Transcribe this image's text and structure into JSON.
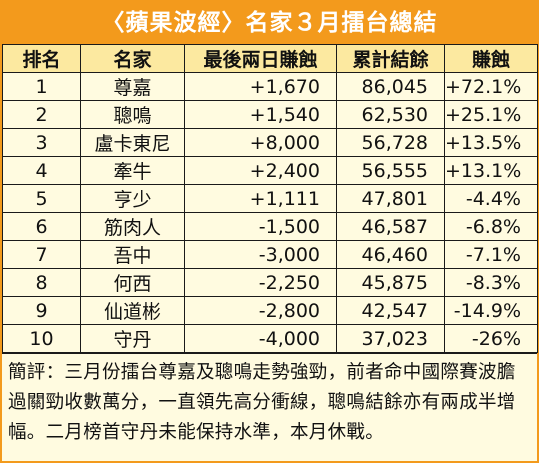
{
  "title": "〈蘋果波經〉名家３月擂台總結",
  "headers": [
    "排名",
    "名家",
    "最後兩日賺蝕",
    "累計結餘",
    "賺蝕"
  ],
  "rows": [
    {
      "rank": "1",
      "name": "尊嘉",
      "last_two_days": "+1,670",
      "balance": "86,045",
      "pct": "+72.1%"
    },
    {
      "rank": "2",
      "name": "聰鳴",
      "last_two_days": "+1,540",
      "balance": "62,530",
      "pct": "+25.1%"
    },
    {
      "rank": "3",
      "name": "盧卡東尼",
      "last_two_days": "+8,000",
      "balance": "56,728",
      "pct": "+13.5%"
    },
    {
      "rank": "4",
      "name": "牽牛",
      "last_two_days": "+2,400",
      "balance": "56,555",
      "pct": "+13.1%"
    },
    {
      "rank": "5",
      "name": "亨少",
      "last_two_days": "+1,111",
      "balance": "47,801",
      "pct": "-4.4%"
    },
    {
      "rank": "6",
      "name": "筋肉人",
      "last_two_days": "-1,500",
      "balance": "46,587",
      "pct": "-6.8%"
    },
    {
      "rank": "7",
      "name": "吾中",
      "last_two_days": "-3,000",
      "balance": "46,460",
      "pct": "-7.1%"
    },
    {
      "rank": "8",
      "name": "何西",
      "last_two_days": "-2,250",
      "balance": "45,875",
      "pct": "-8.3%"
    },
    {
      "rank": "9",
      "name": "仙道彬",
      "last_two_days": "-2,800",
      "balance": "42,547",
      "pct": "-14.9%"
    },
    {
      "rank": "10",
      "name": "守丹",
      "last_two_days": "-4,000",
      "balance": "37,023",
      "pct": "-26%"
    }
  ],
  "commentary": "簡評：三月份擂台尊嘉及聰鳴走勢強勁，前者命中國際賽波膽過關勁收數萬分，一直領先高分衝線，聰鳴結餘亦有兩成半增幅。二月榜首守丹未能保持水準，本月休戰。",
  "colors": {
    "accent": "#f39a1c",
    "header_bg": "#fce9a0",
    "body_bg": "#fffbe0"
  }
}
